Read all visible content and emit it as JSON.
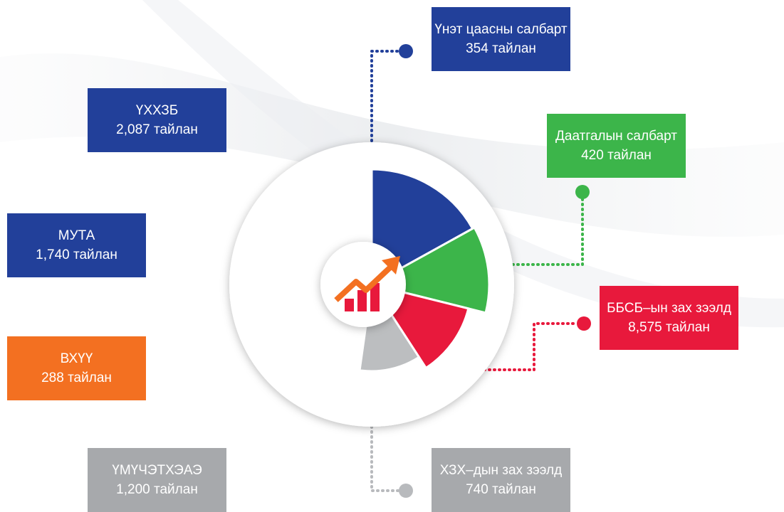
{
  "items": [
    {
      "label": "Үнэт цаасны салбарт",
      "count": "354 тайлан"
    },
    {
      "label": "ҮХХЗБ",
      "count": "2,087 тайлан"
    },
    {
      "label": "Даатгалын салбарт",
      "count": "420 тайлан"
    },
    {
      "label": "МУТА",
      "count": "1,740 тайлан"
    },
    {
      "label": "ББСБ–ын зах зээлд",
      "count": "8,575 тайлан"
    },
    {
      "label": "ВХҮҮ",
      "count": "288 тайлан"
    },
    {
      "label": "ҮМҮЧЭТХЭАЭ",
      "count": "1,200 тайлан"
    },
    {
      "label": "ХЗХ–дын зах зээлд",
      "count": "740 тайлан"
    }
  ]
}
